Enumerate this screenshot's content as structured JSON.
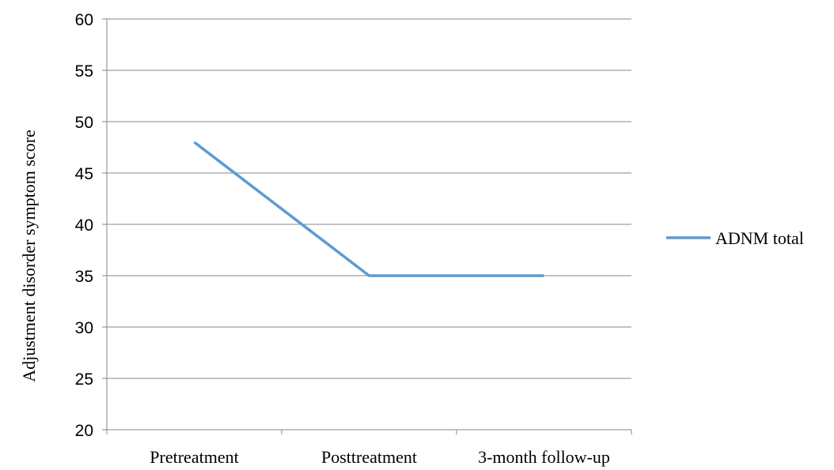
{
  "chart_data": {
    "type": "line",
    "title": "",
    "xlabel": "",
    "ylabel": "Adjustment disorder symptom score",
    "categories": [
      "Pretreatment",
      "Posttreatment",
      "3-month follow-up"
    ],
    "ylim": [
      20,
      60
    ],
    "yticks": [
      20,
      25,
      30,
      35,
      40,
      45,
      50,
      55,
      60
    ],
    "grid": true,
    "legend_position": "right",
    "series": [
      {
        "name": "ADNM total",
        "values": [
          48,
          35,
          35
        ],
        "color": "#5B9BD5"
      }
    ]
  }
}
